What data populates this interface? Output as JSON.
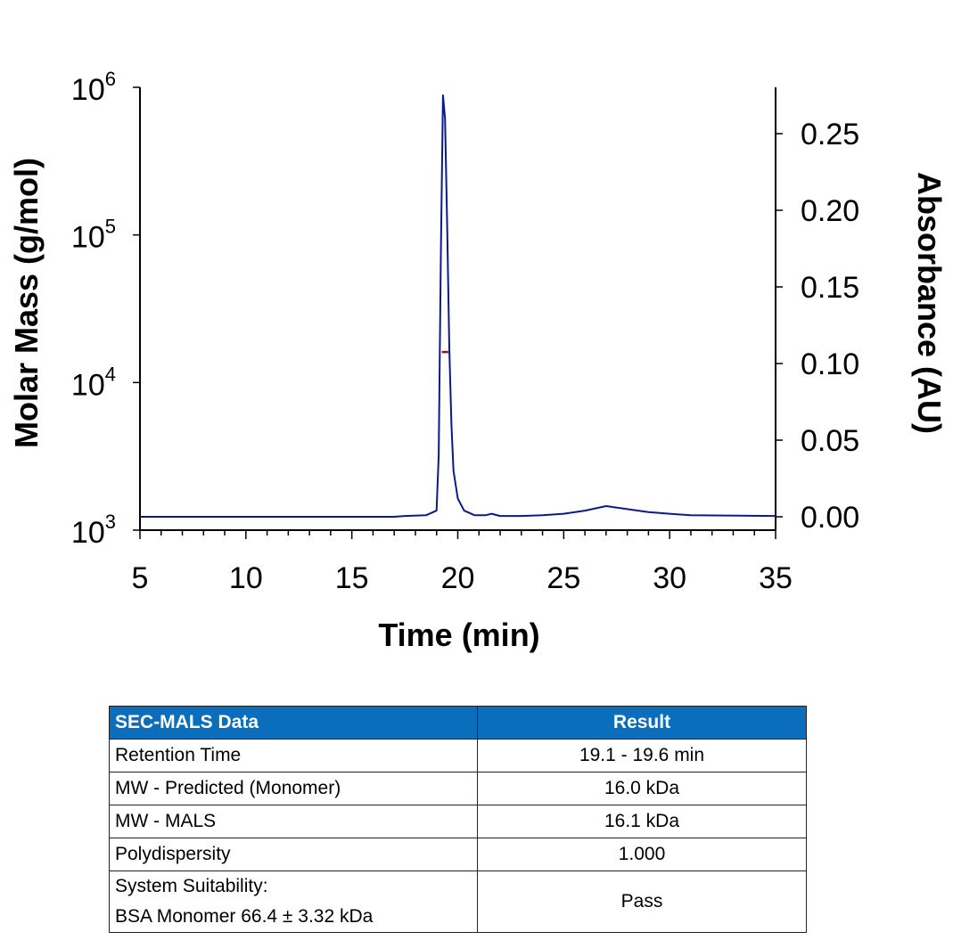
{
  "chart_data": {
    "type": "line",
    "xlabel": "Time (min)",
    "ylabel_left": "Molar Mass (g/mol)",
    "ylabel_right": "Absorbance (AU)",
    "xlim": [
      5,
      35
    ],
    "ylim_left": [
      1000,
      1000000
    ],
    "left_scale": "log",
    "ylim_right": [
      0,
      0.28
    ],
    "x_ticks": [
      "5",
      "10",
      "15",
      "20",
      "25",
      "30",
      "35"
    ],
    "left_ticks": [
      {
        "base": "10",
        "exp": "3"
      },
      {
        "base": "10",
        "exp": "4"
      },
      {
        "base": "10",
        "exp": "5"
      },
      {
        "base": "10",
        "exp": "6"
      }
    ],
    "right_ticks": [
      "0.00",
      "0.05",
      "0.10",
      "0.15",
      "0.20",
      "0.25"
    ],
    "grid": false,
    "series": [
      {
        "axis": "right",
        "color": "#0b1a8a",
        "x": [
          5,
          17,
          17.5,
          18.5,
          19.0,
          19.1,
          19.2,
          19.3,
          19.4,
          19.5,
          19.6,
          19.7,
          19.8,
          20.0,
          20.3,
          20.8,
          21.3,
          21.6,
          22.0,
          23,
          24,
          25,
          26,
          27,
          28,
          29,
          30,
          31,
          35
        ],
        "y": [
          0.0,
          0.0,
          0.0005,
          0.001,
          0.004,
          0.04,
          0.17,
          0.275,
          0.26,
          0.19,
          0.11,
          0.06,
          0.03,
          0.012,
          0.004,
          0.001,
          0.001,
          0.002,
          0.0005,
          0.0005,
          0.001,
          0.002,
          0.004,
          0.007,
          0.005,
          0.003,
          0.002,
          0.001,
          0.0005
        ]
      },
      {
        "axis": "left",
        "color": "#9a1010",
        "x": [
          19.25,
          19.55
        ],
        "y": [
          16100,
          16100
        ]
      }
    ]
  },
  "table": {
    "headers": [
      "SEC-MALS Data",
      "Result"
    ],
    "rows": [
      {
        "label": [
          "Retention Time"
        ],
        "value": "19.1 - 19.6 min"
      },
      {
        "label": [
          "MW - Predicted (Monomer)"
        ],
        "value": "16.0 kDa"
      },
      {
        "label": [
          "MW - MALS"
        ],
        "value": "16.1 kDa"
      },
      {
        "label": [
          "Polydispersity"
        ],
        "value": "1.000"
      },
      {
        "label": [
          "System Suitability:",
          "BSA Monomer 66.4 ± 3.32 kDa"
        ],
        "value": "Pass"
      }
    ]
  }
}
